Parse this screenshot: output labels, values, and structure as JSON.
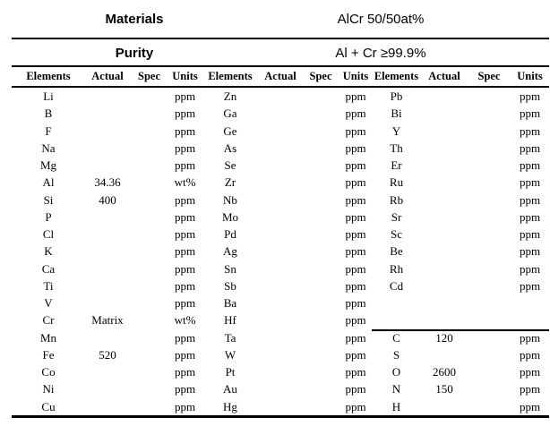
{
  "info_rows": [
    {
      "label": "Materials",
      "value": "AlCr 50/50at%"
    },
    {
      "label": "Purity",
      "value": "Al + Cr ≥99.9%"
    }
  ],
  "column_headers": [
    "Elements",
    "Actual",
    "Spec",
    "Units"
  ],
  "groups": [
    {
      "name": "element-group-1",
      "rows": [
        [
          "Li",
          "",
          "",
          "ppm"
        ],
        [
          "B",
          "",
          "",
          "ppm"
        ],
        [
          "F",
          "",
          "",
          "ppm"
        ],
        [
          "Na",
          "",
          "",
          "ppm"
        ],
        [
          "Mg",
          "",
          "",
          "ppm"
        ],
        [
          "Al",
          "34.36",
          "",
          "wt%"
        ],
        [
          "Si",
          "400",
          "",
          "ppm"
        ],
        [
          "P",
          "",
          "",
          "ppm"
        ],
        [
          "Cl",
          "",
          "",
          "ppm"
        ],
        [
          "K",
          "",
          "",
          "ppm"
        ],
        [
          "Ca",
          "",
          "",
          "ppm"
        ],
        [
          "Ti",
          "",
          "",
          "ppm"
        ],
        [
          "V",
          "",
          "",
          "ppm"
        ],
        [
          "Cr",
          "Matrix",
          "",
          "wt%"
        ],
        [
          "Mn",
          "",
          "",
          "ppm"
        ],
        [
          "Fe",
          "520",
          "",
          "ppm"
        ],
        [
          "Co",
          "",
          "",
          "ppm"
        ],
        [
          "Ni",
          "",
          "",
          "ppm"
        ],
        [
          "Cu",
          "",
          "",
          "ppm"
        ]
      ]
    },
    {
      "name": "element-group-2",
      "rows": [
        [
          "Zn",
          "",
          "",
          "ppm"
        ],
        [
          "Ga",
          "",
          "",
          "ppm"
        ],
        [
          "Ge",
          "",
          "",
          "ppm"
        ],
        [
          "As",
          "",
          "",
          "ppm"
        ],
        [
          "Se",
          "",
          "",
          "ppm"
        ],
        [
          "Zr",
          "",
          "",
          "ppm"
        ],
        [
          "Nb",
          "",
          "",
          "ppm"
        ],
        [
          "Mo",
          "",
          "",
          "ppm"
        ],
        [
          "Pd",
          "",
          "",
          "ppm"
        ],
        [
          "Ag",
          "",
          "",
          "ppm"
        ],
        [
          "Sn",
          "",
          "",
          "ppm"
        ],
        [
          "Sb",
          "",
          "",
          "ppm"
        ],
        [
          "Ba",
          "",
          "",
          "ppm"
        ],
        [
          "Hf",
          "",
          "",
          "ppm"
        ],
        [
          "Ta",
          "",
          "",
          "ppm"
        ],
        [
          "W",
          "",
          "",
          "ppm"
        ],
        [
          "Pt",
          "",
          "",
          "ppm"
        ],
        [
          "Au",
          "",
          "",
          "ppm"
        ],
        [
          "Hg",
          "",
          "",
          "ppm"
        ]
      ]
    },
    {
      "name": "element-group-3",
      "divider_above_index": 14,
      "rows": [
        [
          "Pb",
          "",
          "",
          "ppm"
        ],
        [
          "Bi",
          "",
          "",
          "ppm"
        ],
        [
          "Y",
          "",
          "",
          "ppm"
        ],
        [
          "Th",
          "",
          "",
          "ppm"
        ],
        [
          "Er",
          "",
          "",
          "ppm"
        ],
        [
          "Ru",
          "",
          "",
          "ppm"
        ],
        [
          "Rb",
          "",
          "",
          "ppm"
        ],
        [
          "Sr",
          "",
          "",
          "ppm"
        ],
        [
          "Sc",
          "",
          "",
          "ppm"
        ],
        [
          "Be",
          "",
          "",
          "ppm"
        ],
        [
          "Rh",
          "",
          "",
          "ppm"
        ],
        [
          "Cd",
          "",
          "",
          "ppm"
        ],
        [
          "",
          "",
          "",
          ""
        ],
        [
          "",
          "",
          "",
          ""
        ],
        [
          "C",
          "120",
          "",
          "ppm"
        ],
        [
          "S",
          "",
          "",
          "ppm"
        ],
        [
          "O",
          "2600",
          "",
          "ppm"
        ],
        [
          "N",
          "150",
          "",
          "ppm"
        ],
        [
          "H",
          "",
          "",
          "ppm"
        ]
      ]
    }
  ],
  "colors": {
    "text": "#000000",
    "line": "#000000",
    "background": "#ffffff"
  }
}
